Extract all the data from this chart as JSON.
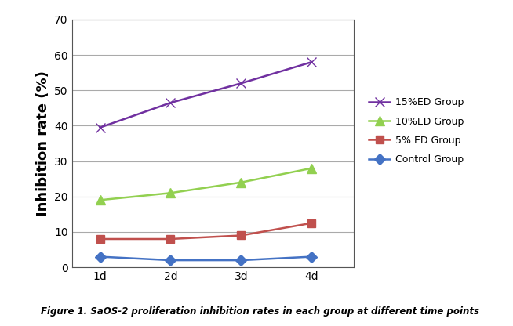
{
  "x_labels": [
    "1d",
    "2d",
    "3d",
    "4d"
  ],
  "x_values": [
    1,
    2,
    3,
    4
  ],
  "series": [
    {
      "label": "15%ED Group",
      "values": [
        39.5,
        46.5,
        52.0,
        58.0
      ],
      "color": "#7030A0",
      "marker": "x",
      "linewidth": 1.8,
      "markersize": 8
    },
    {
      "label": "10%ED Group",
      "values": [
        19.0,
        21.0,
        24.0,
        28.0
      ],
      "color": "#92D050",
      "marker": "^",
      "linewidth": 1.8,
      "markersize": 8
    },
    {
      "label": "5% ED Group",
      "values": [
        8.0,
        8.0,
        9.0,
        12.5
      ],
      "color": "#C0504D",
      "marker": "s",
      "linewidth": 1.8,
      "markersize": 7
    },
    {
      "label": "Control Group",
      "values": [
        3.0,
        2.0,
        2.0,
        3.0
      ],
      "color": "#4472C4",
      "marker": "D",
      "linewidth": 1.8,
      "markersize": 7
    }
  ],
  "ylabel": "Inhibition rate (%)",
  "ylim": [
    0,
    70
  ],
  "yticks": [
    0,
    10,
    20,
    30,
    40,
    50,
    60,
    70
  ],
  "xlim": [
    0.6,
    4.6
  ],
  "grid_color": "#AAAAAA",
  "background_color": "#FFFFFF",
  "plot_bg_color": "#FFFFFF",
  "figure_caption": "Figure 1. SaOS-2 proliferation inhibition rates in each group at different time points",
  "legend_fontsize": 9,
  "axis_label_fontsize": 13,
  "tick_fontsize": 10
}
